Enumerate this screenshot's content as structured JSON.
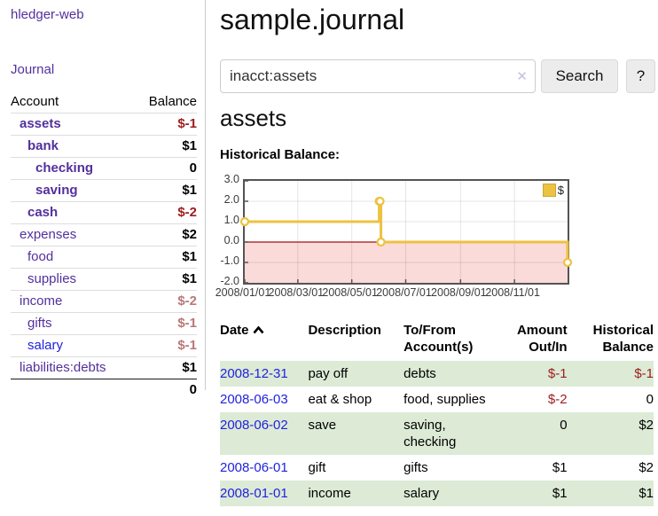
{
  "brand": "hledger-web",
  "nav": {
    "journal": "Journal"
  },
  "accounts_panel": {
    "headers": {
      "account": "Account",
      "balance": "Balance"
    },
    "rows": [
      {
        "account": "assets",
        "balance": "$-1",
        "level": 1,
        "in_filter": true,
        "neg": "strong"
      },
      {
        "account": "bank",
        "balance": "$1",
        "level": 2,
        "in_filter": true
      },
      {
        "account": "checking",
        "balance": "0",
        "level": 3,
        "in_filter": true
      },
      {
        "account": "saving",
        "balance": "$1",
        "level": 3,
        "in_filter": true
      },
      {
        "account": "cash",
        "balance": "$-2",
        "level": 2,
        "in_filter": true,
        "neg": "strong"
      },
      {
        "account": "expenses",
        "balance": "$2",
        "level": 1
      },
      {
        "account": "food",
        "balance": "$1",
        "level": 2
      },
      {
        "account": "supplies",
        "balance": "$1",
        "level": 2
      },
      {
        "account": "income",
        "balance": "$-2",
        "level": 1,
        "neg": "muted"
      },
      {
        "account": "gifts",
        "balance": "$-1",
        "level": 2,
        "neg": "muted"
      },
      {
        "account": "salary",
        "balance": "$-1",
        "level": 2,
        "neg": "muted",
        "blue_link": true
      },
      {
        "account": "liabilities:debts",
        "balance": "$1",
        "level": 1
      }
    ],
    "total": "0"
  },
  "main": {
    "title": "sample.journal",
    "search": {
      "value": "inacct:assets",
      "clear_icon": "✕",
      "search_button": "Search",
      "help_button": "?"
    },
    "account_heading": "assets",
    "section_label": "Historical Balance:"
  },
  "chart_data": {
    "type": "line",
    "style": "steps",
    "title": "Historical Balance:",
    "series": [
      {
        "name": "$",
        "color": "#edc240",
        "points": [
          [
            "2008-01-01",
            1
          ],
          [
            "2008-06-01",
            2
          ],
          [
            "2008-06-02",
            2
          ],
          [
            "2008-06-03",
            0
          ],
          [
            "2008-12-31",
            -1
          ]
        ]
      }
    ],
    "x_range": [
      "2008-01-01",
      "2008-12-31"
    ],
    "ylim": [
      -2,
      3
    ],
    "y_tick_labels": [
      "3.0",
      "2.0",
      "1.0",
      "0.0",
      "-1.0",
      "-2.0"
    ],
    "y_tick_values": [
      3,
      2,
      1,
      0,
      -1,
      -2
    ],
    "x_tick_dates": [
      "2008-01-01",
      "2008-03-01",
      "2008-05-01",
      "2008-07-01",
      "2008-09-01",
      "2008-11-01"
    ],
    "x_tick_labels": [
      "2008/01/01",
      "2008/03/01",
      "2008/05/01",
      "2008/07/01",
      "2008/09/01",
      "2008/11/01"
    ],
    "legend": {
      "label": "$",
      "position": "top-right"
    },
    "negative_region_below": 0,
    "grid": true,
    "colors": {
      "line": "#edc240",
      "marker_fill": "#ffffff",
      "negative_region": "#fbdada",
      "zero_line": "#a21212",
      "grid": "#000000",
      "border": "#545454"
    }
  },
  "register": {
    "columns": [
      {
        "label": "Date",
        "align": "left",
        "sorted": "asc"
      },
      {
        "label": "Description",
        "align": "left"
      },
      {
        "label": "To/From Account(s)",
        "align": "left"
      },
      {
        "label": "Amount Out/In",
        "align": "right"
      },
      {
        "label": "Historical Balance",
        "align": "right"
      }
    ],
    "rows": [
      {
        "date": "2008-12-31",
        "description": "pay off",
        "accounts": "debts",
        "amount": "$-1",
        "balance": "$-1"
      },
      {
        "date": "2008-06-03",
        "description": "eat & shop",
        "accounts": "food, supplies",
        "amount": "$-2",
        "balance": "0"
      },
      {
        "date": "2008-06-02",
        "description": "save",
        "accounts": "saving, checking",
        "amount": "0",
        "balance": "$2"
      },
      {
        "date": "2008-06-01",
        "description": "gift",
        "accounts": "gifts",
        "amount": "$1",
        "balance": "$2"
      },
      {
        "date": "2008-01-01",
        "description": "income",
        "accounts": "salary",
        "amount": "$1",
        "balance": "$1"
      }
    ]
  }
}
